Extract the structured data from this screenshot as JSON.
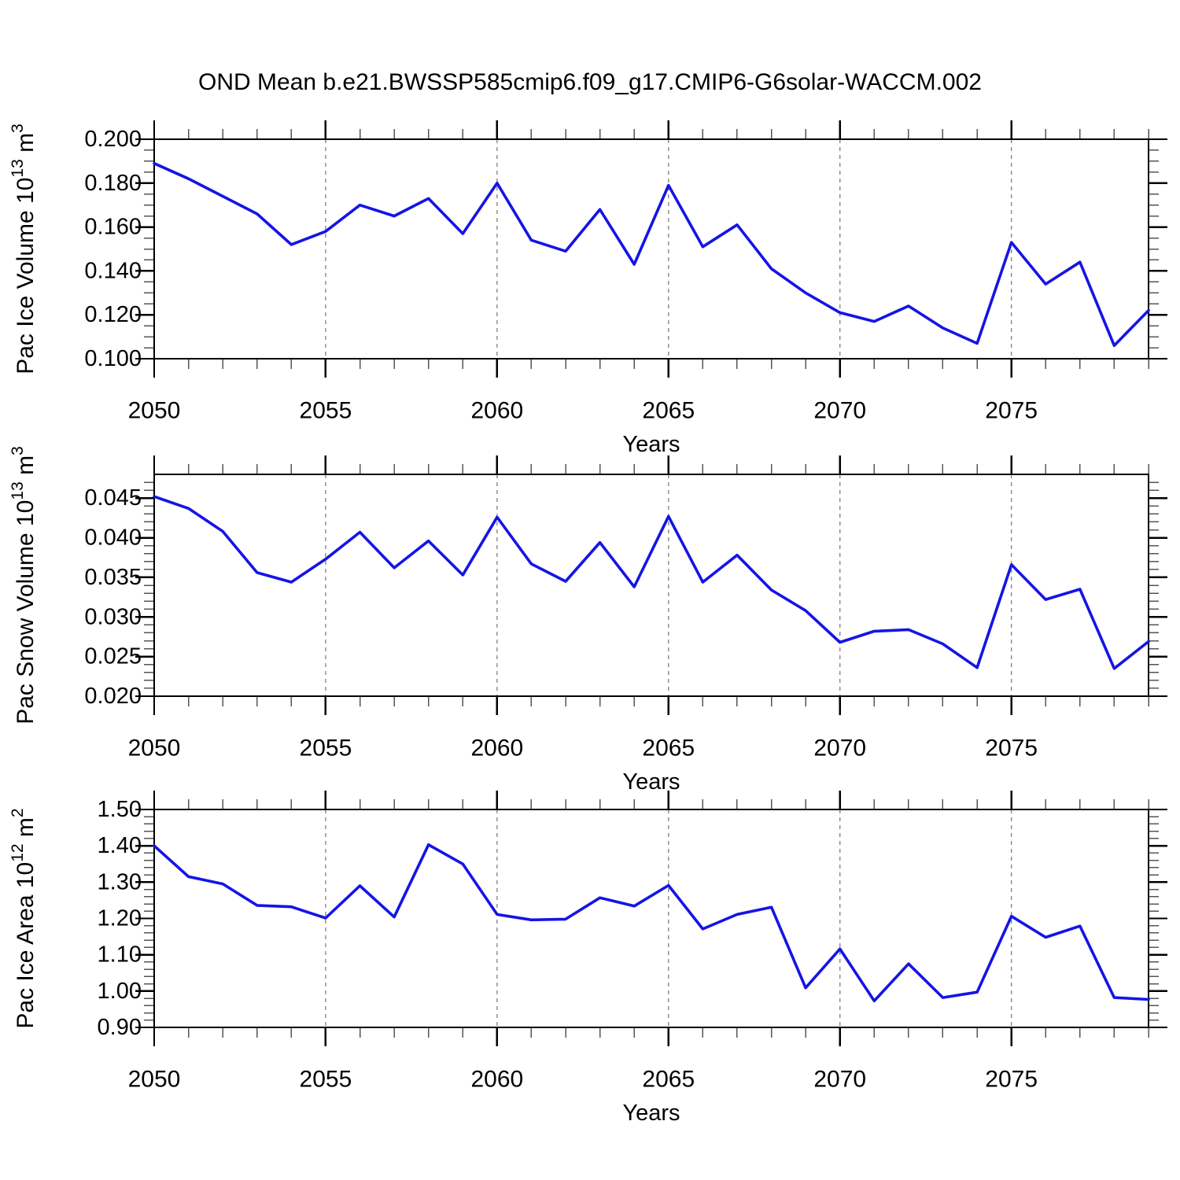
{
  "title": "OND Mean b.e21.BWSSP585cmip6.f09_g17.CMIP6-G6solar-WACCM.002",
  "chart_data": {
    "type": "line",
    "x": [
      2050,
      2051,
      2052,
      2053,
      2054,
      2055,
      2056,
      2057,
      2058,
      2059,
      2060,
      2061,
      2062,
      2063,
      2064,
      2065,
      2066,
      2067,
      2068,
      2069,
      2070,
      2071,
      2072,
      2073,
      2074,
      2075,
      2076,
      2077,
      2078,
      2079
    ],
    "xlabel": "Years",
    "x_major_tick_labels": [
      "2050",
      "2055",
      "2060",
      "2065",
      "2070",
      "2075"
    ],
    "x_major_tick_values": [
      2050,
      2055,
      2060,
      2065,
      2070,
      2075
    ],
    "grid_dashed_vertical_at": [
      2055,
      2060,
      2065,
      2070,
      2075
    ],
    "line_color": "#1414e6",
    "grid_color": "#888888",
    "axis_color": "#000000",
    "minor_tick_color": "#555555",
    "legend": "none",
    "panels": [
      {
        "ylabel": "Pac Ice Volume 10^13^ m^3^",
        "ylim": [
          0.1,
          0.2
        ],
        "ytick_values": [
          0.1,
          0.12,
          0.14,
          0.16,
          0.18,
          0.2
        ],
        "ytick_labels": [
          "0.100",
          "0.120",
          "0.140",
          "0.160",
          "0.180",
          "0.200"
        ],
        "y_minor_step": 0.005,
        "values": [
          0.189,
          0.182,
          0.174,
          0.166,
          0.152,
          0.158,
          0.17,
          0.165,
          0.173,
          0.157,
          0.18,
          0.154,
          0.149,
          0.168,
          0.143,
          0.179,
          0.151,
          0.161,
          0.141,
          0.13,
          0.121,
          0.117,
          0.124,
          0.114,
          0.107,
          0.153,
          0.134,
          0.144,
          0.106,
          0.122
        ]
      },
      {
        "ylabel": "Pac Snow Volume 10^13^ m^3^",
        "ylim": [
          0.02,
          0.048
        ],
        "ytick_values": [
          0.02,
          0.025,
          0.03,
          0.035,
          0.04,
          0.045
        ],
        "ytick_labels": [
          "0.020",
          "0.025",
          "0.030",
          "0.035",
          "0.040",
          "0.045"
        ],
        "y_minor_step": 0.001,
        "values": [
          0.0452,
          0.0437,
          0.0408,
          0.0356,
          0.0344,
          0.0373,
          0.0407,
          0.0362,
          0.0396,
          0.0353,
          0.0426,
          0.0367,
          0.0345,
          0.0394,
          0.0338,
          0.0427,
          0.0344,
          0.0378,
          0.0334,
          0.0308,
          0.0268,
          0.0282,
          0.0284,
          0.0266,
          0.0236,
          0.0366,
          0.0322,
          0.0335,
          0.0235,
          0.0269
        ]
      },
      {
        "ylabel": "Pac Ice Area 10^12^ m^2^",
        "ylim": [
          0.9,
          1.5
        ],
        "ytick_values": [
          0.9,
          1.0,
          1.1,
          1.2,
          1.3,
          1.4,
          1.5
        ],
        "ytick_labels": [
          "0.90",
          "1.00",
          "1.10",
          "1.20",
          "1.30",
          "1.40",
          "1.50"
        ],
        "y_minor_step": 0.02,
        "values": [
          1.4,
          1.315,
          1.295,
          1.236,
          1.232,
          1.201,
          1.29,
          1.204,
          1.403,
          1.35,
          1.211,
          1.196,
          1.198,
          1.257,
          1.234,
          1.291,
          1.171,
          1.211,
          1.231,
          1.009,
          1.116,
          0.973,
          1.075,
          0.982,
          0.997,
          1.206,
          1.148,
          1.179,
          0.982,
          0.977
        ]
      }
    ]
  }
}
